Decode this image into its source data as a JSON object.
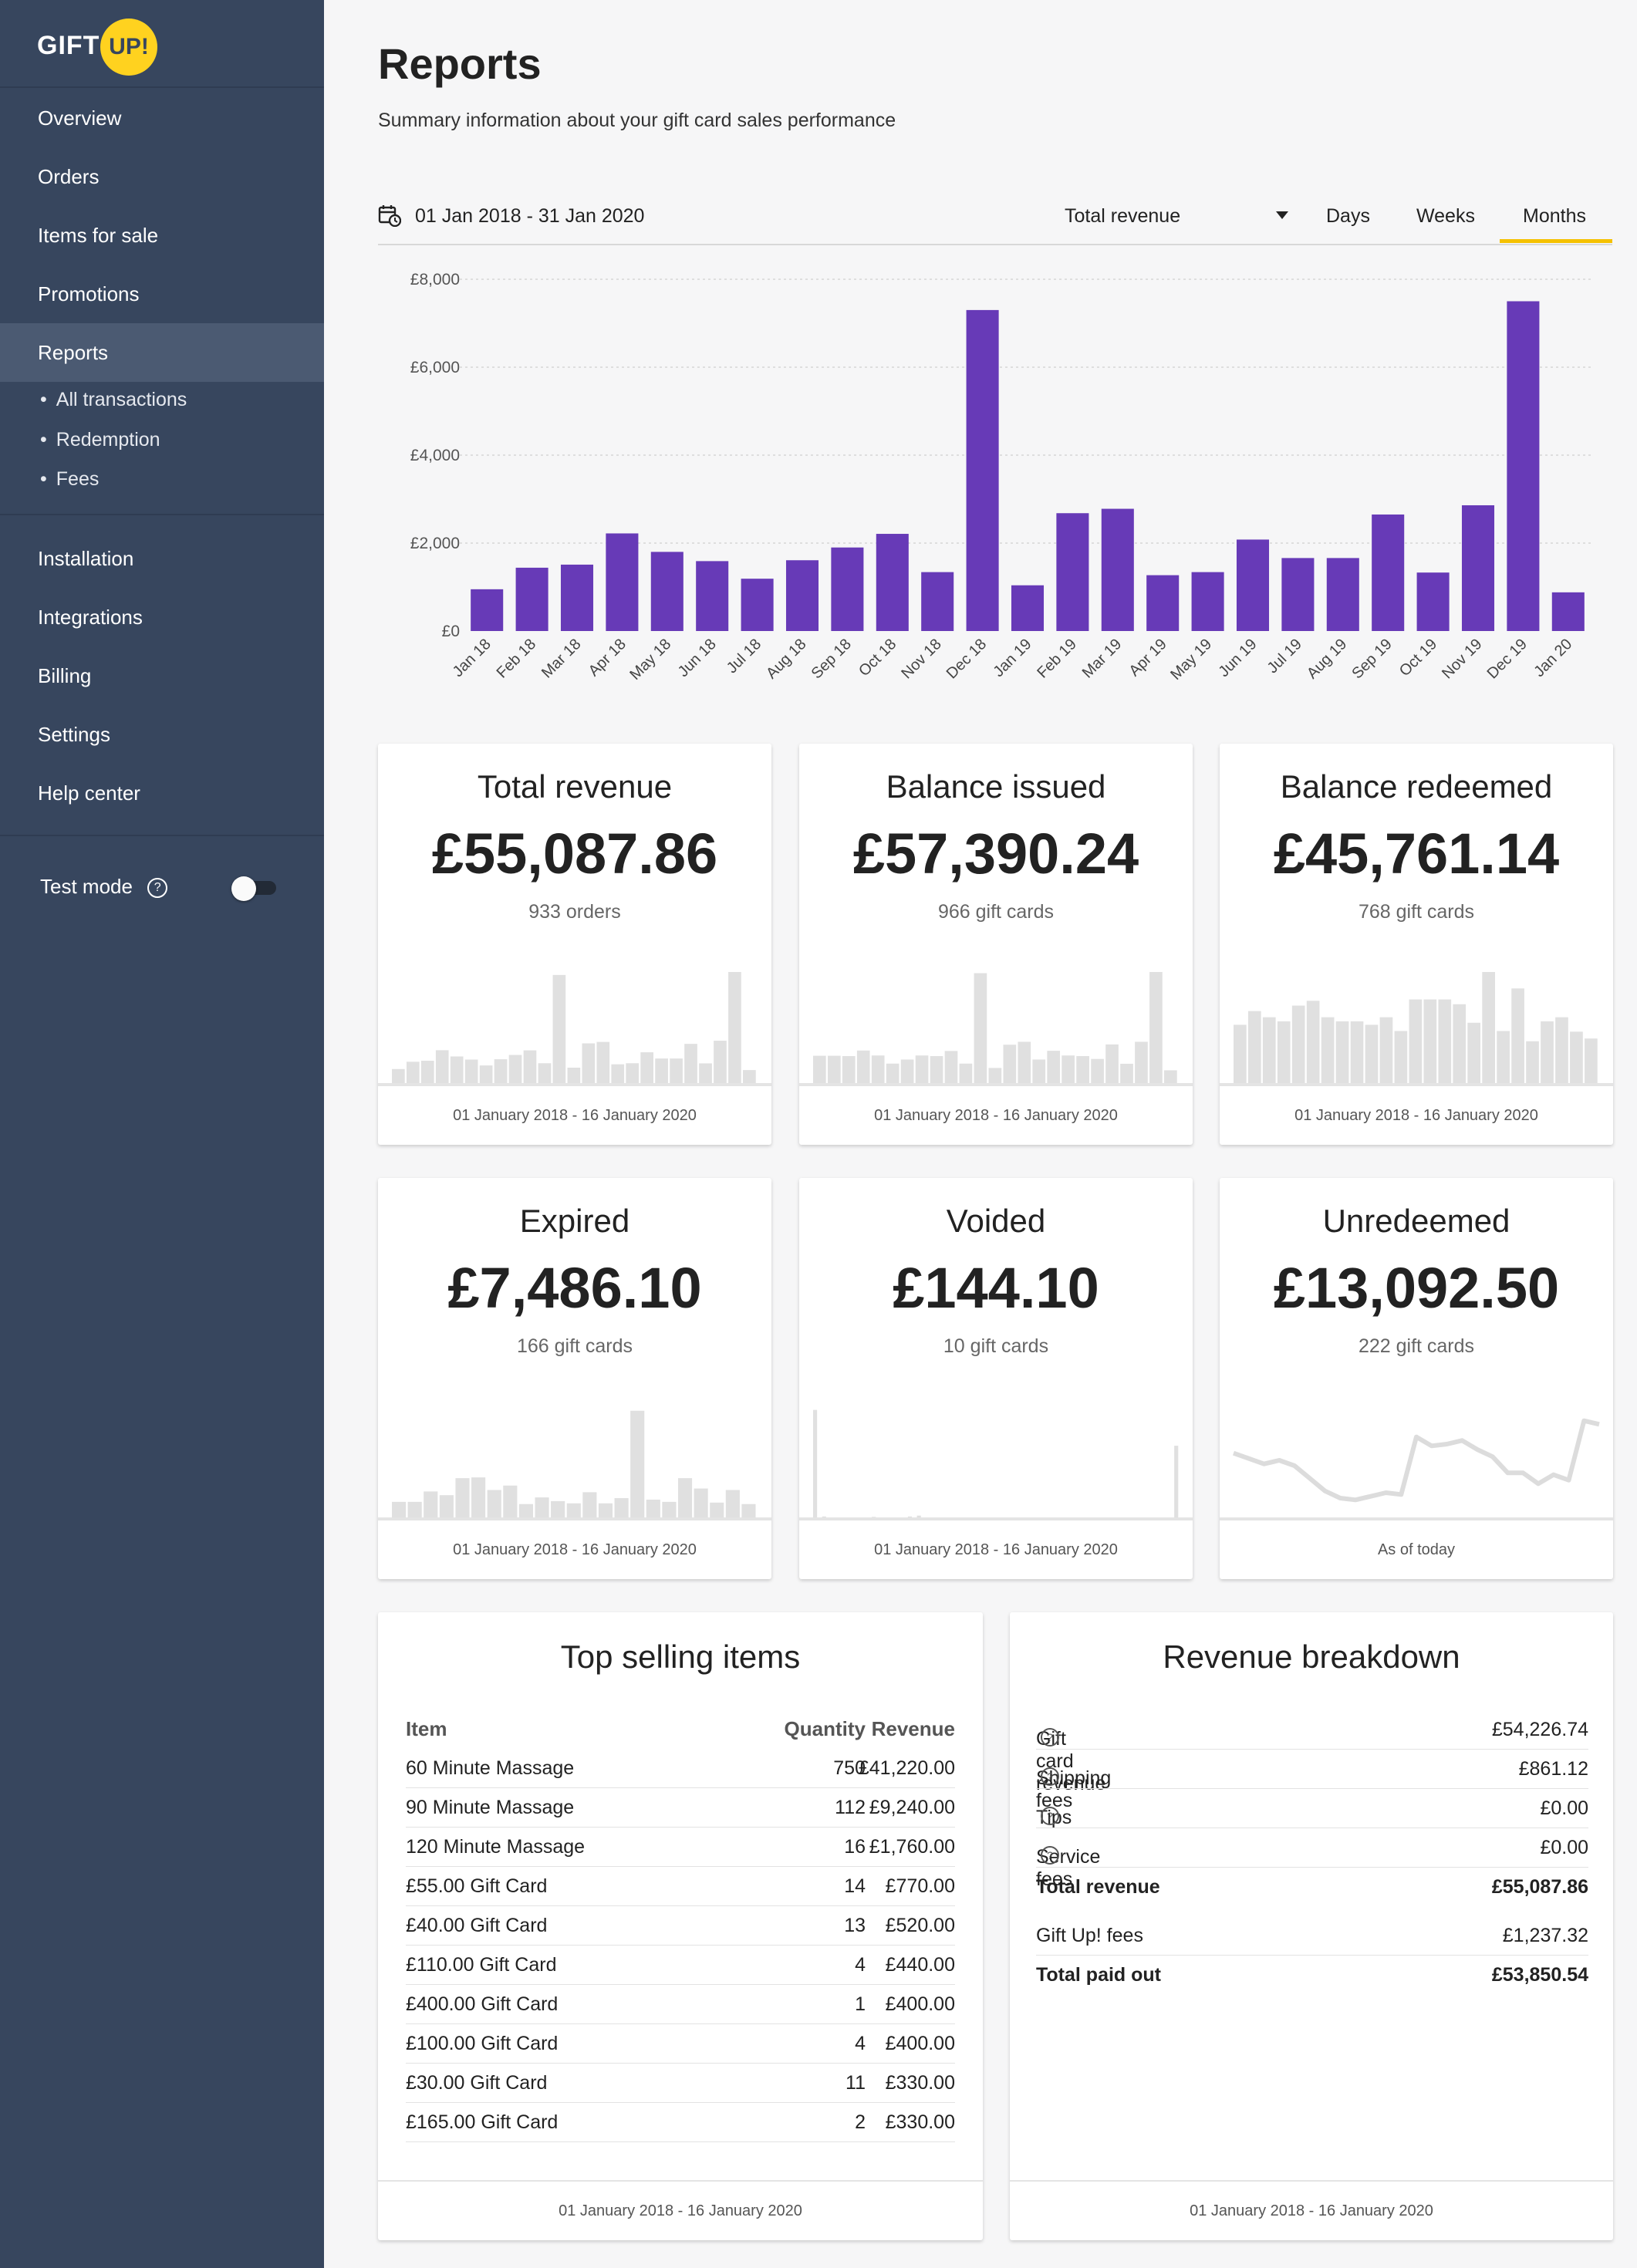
{
  "brand": {
    "name_left": "GIFT",
    "name_right": "UP!",
    "accent": "#ffd21f",
    "sidebar_bg": "#37465e"
  },
  "sidebar": {
    "items": [
      {
        "label": "Overview"
      },
      {
        "label": "Orders"
      },
      {
        "label": "Items for sale"
      },
      {
        "label": "Promotions"
      },
      {
        "label": "Reports"
      }
    ],
    "sub_items": [
      {
        "label": "All transactions"
      },
      {
        "label": "Redemption"
      },
      {
        "label": "Fees"
      }
    ],
    "items2": [
      {
        "label": "Installation"
      },
      {
        "label": "Integrations"
      },
      {
        "label": "Billing"
      },
      {
        "label": "Settings"
      },
      {
        "label": "Help center"
      }
    ],
    "test_mode": {
      "label": "Test mode",
      "help": "?",
      "enabled": false
    }
  },
  "page": {
    "title": "Reports",
    "subtitle": "Summary information about your gift card sales performance"
  },
  "toolbar": {
    "date_range": "01 Jan 2018 - 31 Jan 2020",
    "metric": "Total revenue",
    "periods": [
      "Days",
      "Weeks",
      "Months"
    ],
    "active_period": "Months",
    "accent": "#f5c100"
  },
  "chart_data": [
    {
      "type": "bar",
      "title": "",
      "xlabel": "",
      "ylabel": "",
      "ylim": [
        0,
        8000
      ],
      "yticks": [
        "£0",
        "£2,000",
        "£4,000",
        "£6,000",
        "£8,000"
      ],
      "ytick_values": [
        0,
        2000,
        4000,
        6000,
        8000
      ],
      "grid": true,
      "color": "#673ab7",
      "categories": [
        "Jan 18",
        "Feb 18",
        "Mar 18",
        "Apr 18",
        "May 18",
        "Jun 18",
        "Jul 18",
        "Aug 18",
        "Sep 18",
        "Oct 18",
        "Nov 18",
        "Dec 18",
        "Jan 19",
        "Feb 19",
        "Mar 19",
        "Apr 19",
        "May 19",
        "Jun 19",
        "Jul 19",
        "Aug 19",
        "Sep 19",
        "Oct 19",
        "Nov 19",
        "Dec 19",
        "Jan 20"
      ],
      "values": [
        950,
        1440,
        1510,
        2220,
        1800,
        1590,
        1190,
        1610,
        1900,
        2210,
        1340,
        7300,
        1040,
        2680,
        2780,
        1270,
        1340,
        2080,
        1660,
        1660,
        2650,
        1330,
        2860,
        7500,
        880
      ]
    }
  ],
  "cards": [
    {
      "title": "Total revenue",
      "value": "£55,087.86",
      "sub": "933 orders",
      "footer": "01 January 2018 - 16 January 2020",
      "spark_type": "bar",
      "spark": [
        950,
        1440,
        1510,
        2220,
        1800,
        1590,
        1190,
        1610,
        1900,
        2210,
        1340,
        7300,
        1040,
        2680,
        2780,
        1270,
        1340,
        2080,
        1660,
        1660,
        2650,
        1330,
        2860,
        7500,
        880
      ]
    },
    {
      "title": "Balance issued",
      "value": "£57,390.24",
      "sub": "966 gift cards",
      "footer": "01 January 2018 - 16 January 2020",
      "spark_type": "bar",
      "spark": [
        1880,
        1880,
        1860,
        2240,
        1900,
        1340,
        1620,
        1900,
        1860,
        2210,
        1340,
        7560,
        1040,
        2640,
        2840,
        1620,
        2220,
        1900,
        1860,
        1660,
        2660,
        1330,
        2840,
        7640,
        880
      ]
    },
    {
      "title": "Balance redeemed",
      "value": "£45,761.14",
      "sub": "768 gift cards",
      "footer": "01 January 2018 - 16 January 2020",
      "spark_type": "bar",
      "spark": [
        1700,
        2100,
        1920,
        1800,
        2260,
        2400,
        1920,
        1800,
        1800,
        1700,
        1920,
        1520,
        2440,
        2440,
        2440,
        2300,
        1760,
        3240,
        1520,
        2760,
        1220,
        1800,
        1920,
        1500,
        1300
      ]
    },
    {
      "title": "Expired",
      "value": "£7,486.10",
      "sub": "166 gift cards",
      "footer": "01 January 2018 - 16 January 2020",
      "spark_type": "bar",
      "spark": [
        420,
        420,
        700,
        600,
        1060,
        1080,
        740,
        860,
        360,
        540,
        440,
        380,
        680,
        380,
        520,
        2880,
        480,
        420,
        1060,
        780,
        400,
        740,
        360
      ],
      "spark_max": 3000
    },
    {
      "title": "Voided",
      "value": "£144.10",
      "sub": "10 gift cards",
      "footer": "01 January 2018 - 16 January 2020",
      "spark_type": "bar",
      "spark": [
        60,
        0,
        0.5,
        0,
        0,
        0,
        0,
        0,
        0,
        0,
        0,
        0,
        0,
        0.3,
        0,
        0,
        0,
        0,
        0,
        0,
        0,
        0.5,
        0,
        1,
        0,
        0,
        0,
        0,
        0,
        0,
        0,
        0,
        0,
        0,
        0,
        0,
        0,
        0,
        0,
        0,
        0,
        0,
        0,
        0,
        0,
        0,
        0,
        0,
        0,
        0,
        0,
        0,
        0,
        0,
        0,
        0,
        0,
        0,
        0,
        0,
        0,
        0,
        0,
        0,
        0,
        0,
        0,
        0,
        0,
        0,
        0,
        0,
        0,
        0,
        0,
        0,
        0,
        0,
        0,
        0,
        40
      ],
      "spark_max": 62
    },
    {
      "title": "Unredeemed",
      "value": "£13,092.50",
      "sub": "222 gift cards",
      "footer": "As of today",
      "spark_type": "line",
      "spark": [
        9900,
        9600,
        9300,
        9500,
        9200,
        8500,
        7800,
        7400,
        7300,
        7500,
        7700,
        7600,
        10800,
        10300,
        10400,
        10600,
        10100,
        9700,
        8800,
        8800,
        8200,
        8700,
        8400,
        11700,
        11500
      ],
      "spark_min": 6500,
      "spark_max": 12500
    }
  ],
  "colors": {
    "spark": "#e0e0e0",
    "spark_line": "#dcdcdc"
  },
  "top_items": {
    "title": "Top selling items",
    "headers": {
      "item": "Item",
      "quantity": "Quantity",
      "revenue": "Revenue"
    },
    "rows": [
      {
        "item": "60 Minute Massage",
        "quantity": "750",
        "revenue": "£41,220.00"
      },
      {
        "item": "90 Minute Massage",
        "quantity": "112",
        "revenue": "£9,240.00"
      },
      {
        "item": "120 Minute Massage",
        "quantity": "16",
        "revenue": "£1,760.00"
      },
      {
        "item": "£55.00 Gift Card",
        "quantity": "14",
        "revenue": "£770.00"
      },
      {
        "item": "£40.00 Gift Card",
        "quantity": "13",
        "revenue": "£520.00"
      },
      {
        "item": "£110.00 Gift Card",
        "quantity": "4",
        "revenue": "£440.00"
      },
      {
        "item": "£400.00 Gift Card",
        "quantity": "1",
        "revenue": "£400.00"
      },
      {
        "item": "£100.00 Gift Card",
        "quantity": "4",
        "revenue": "£400.00"
      },
      {
        "item": "£30.00 Gift Card",
        "quantity": "11",
        "revenue": "£330.00"
      },
      {
        "item": "£165.00 Gift Card",
        "quantity": "2",
        "revenue": "£330.00"
      }
    ],
    "footer": "01 January 2018 - 16 January 2020"
  },
  "revenue_breakdown": {
    "title": "Revenue breakdown",
    "rows": [
      {
        "label": "Gift card revenue",
        "value": "£54,226.74",
        "help": "?"
      },
      {
        "label": "Shipping fees",
        "value": "£861.12",
        "help": "?"
      },
      {
        "label": "Tips",
        "value": "£0.00",
        "help": "?"
      },
      {
        "label": "Service fees",
        "value": "£0.00",
        "help": "?"
      }
    ],
    "total": {
      "label": "Total revenue",
      "value": "£55,087.86"
    },
    "fees": {
      "label": "Gift Up! fees",
      "value": "£1,237.32"
    },
    "paid_out": {
      "label": "Total paid out",
      "value": "£53,850.54"
    },
    "footer": "01 January 2018 - 16 January 2020"
  }
}
